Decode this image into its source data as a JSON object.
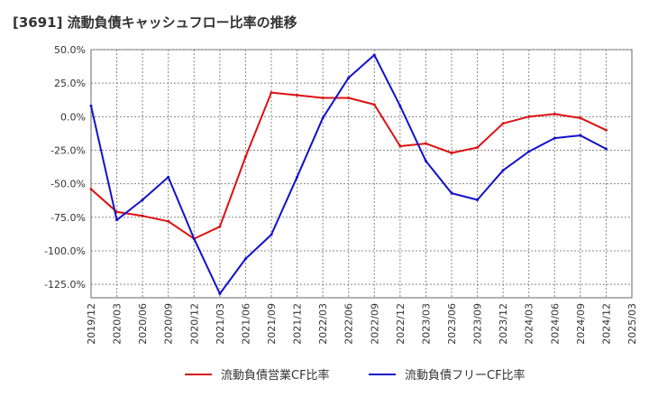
{
  "chart_data": {
    "type": "line",
    "title": "[3691]  流動負債キャッシュフロー比率の推移",
    "xlabel": "",
    "ylabel": "",
    "x": [
      "2019/12",
      "2020/03",
      "2020/06",
      "2020/09",
      "2020/12",
      "2021/03",
      "2021/06",
      "2021/09",
      "2021/12",
      "2022/03",
      "2022/06",
      "2022/09",
      "2022/12",
      "2023/03",
      "2023/06",
      "2023/09",
      "2023/12",
      "2024/03",
      "2024/06",
      "2024/09",
      "2024/12",
      "2025/03"
    ],
    "ylim": [
      -135,
      50
    ],
    "y_ticks": [
      50,
      25,
      0,
      -25,
      -50,
      -75,
      -100,
      -125
    ],
    "y_tick_labels": [
      "50.0%",
      "25.0%",
      "0.0%",
      "-25.0%",
      "-50.0%",
      "-75.0%",
      "-100.0%",
      "-125.0%"
    ],
    "grid": true,
    "legend_position": "bottom",
    "series": [
      {
        "name": "流動負債営業CF比率",
        "color": "#dd1111",
        "values": [
          -54,
          -71,
          -74,
          -78,
          -91,
          -82,
          -30,
          18,
          16,
          14,
          14,
          9,
          -22,
          -20,
          -27,
          -23,
          -5,
          0,
          2,
          -1,
          -10,
          null
        ]
      },
      {
        "name": "流動負債フリーCF比率",
        "color": "#1111cc",
        "values": [
          8,
          -77,
          -62,
          -45,
          -91,
          -132,
          -106,
          -88,
          -45,
          -1,
          29,
          46,
          8,
          -33,
          -57,
          -62,
          -40,
          -26,
          -16,
          -14,
          -24,
          null
        ]
      }
    ]
  }
}
